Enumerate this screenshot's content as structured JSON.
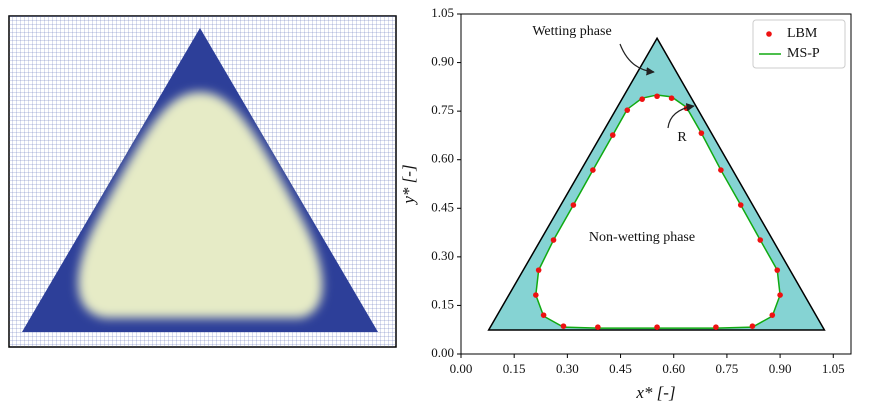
{
  "chart_data": {
    "type": "scatter",
    "x_label": "x* [-]",
    "y_label": "y* [-]",
    "xlim": [
      0,
      1.1
    ],
    "ylim": [
      0,
      1.05
    ],
    "xticks": [
      {
        "value": 0,
        "label": "0.00"
      },
      0.15,
      {
        "value": 0.3,
        "label": "0.30"
      },
      0.45,
      {
        "value": 0.6,
        "label": "0.60"
      },
      0.75,
      {
        "value": 0.9,
        "label": "0.90"
      },
      1.05
    ],
    "yticks": [
      {
        "value": 0,
        "label": "0.00"
      },
      0.15,
      {
        "value": 0.3,
        "label": "0.30"
      },
      0.45,
      {
        "value": 0.6,
        "label": "0.60"
      },
      0.75,
      {
        "value": 0.9,
        "label": "0.90"
      },
      1.05
    ],
    "legend": "upper right",
    "triangle": {
      "color": "#85d3d3",
      "x": [
        0.078,
        0.553,
        1.025
      ],
      "y": [
        0.074,
        0.975,
        0.074
      ]
    },
    "series": [
      {
        "name": "LBM",
        "color": "#ee1111",
        "x": [
          0.553,
          0.386,
          0.289,
          0.233,
          0.211,
          0.219,
          0.261,
          0.317,
          0.372,
          0.428,
          0.469,
          0.511,
          0.553,
          0.594,
          0.636,
          0.678,
          0.733,
          0.789,
          0.844,
          0.892,
          0.9,
          0.878,
          0.822,
          0.719
        ],
        "y": [
          0.083,
          0.083,
          0.086,
          0.12,
          0.182,
          0.259,
          0.352,
          0.46,
          0.568,
          0.676,
          0.753,
          0.787,
          0.796,
          0.79,
          0.759,
          0.682,
          0.568,
          0.46,
          0.352,
          0.259,
          0.182,
          0.12,
          0.086,
          0.083
        ]
      },
      {
        "name": "MS-P",
        "color": "#11aa11",
        "x": [
          0.553,
          0.386,
          0.289,
          0.233,
          0.211,
          0.219,
          0.261,
          0.317,
          0.372,
          0.428,
          0.469,
          0.511,
          0.553,
          0.594,
          0.636,
          0.678,
          0.733,
          0.789,
          0.844,
          0.892,
          0.9,
          0.878,
          0.822,
          0.719,
          0.553
        ],
        "y": [
          0.08,
          0.08,
          0.083,
          0.117,
          0.182,
          0.259,
          0.352,
          0.46,
          0.568,
          0.676,
          0.756,
          0.79,
          0.8,
          0.794,
          0.762,
          0.682,
          0.568,
          0.46,
          0.352,
          0.259,
          0.182,
          0.117,
          0.083,
          0.08,
          0.08
        ]
      }
    ],
    "annotations": [
      "Wetting phase",
      "Non-wetting phase",
      "R"
    ]
  }
}
